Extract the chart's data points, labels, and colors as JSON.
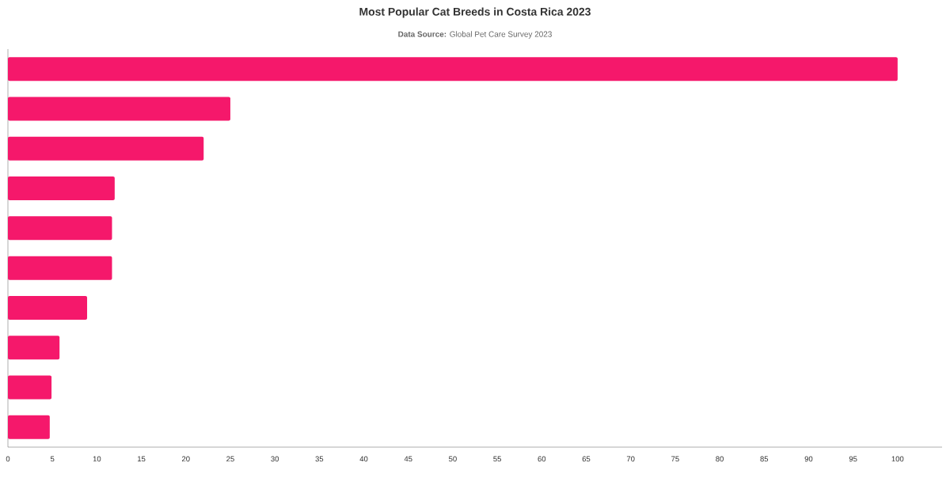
{
  "chart_data": {
    "type": "bar",
    "orientation": "horizontal",
    "title": "Most Popular Cat Breeds in Costa Rica 2023",
    "subtitle": "**Data Source:** Global Pet Care Survey 2023",
    "categories": [
      null,
      null,
      null,
      null,
      null,
      null,
      null,
      null,
      null,
      null
    ],
    "values": [
      100,
      25.0,
      22.0,
      12.0,
      11.7,
      11.7,
      8.9,
      5.8,
      4.9,
      4.7
    ],
    "color": "#f5186b",
    "xlim": [
      0,
      105
    ],
    "xticks": [
      0,
      5,
      10,
      15,
      20,
      25,
      30,
      35,
      40,
      45,
      50,
      55,
      60,
      65,
      70,
      75,
      80,
      85,
      90,
      95,
      100
    ]
  }
}
